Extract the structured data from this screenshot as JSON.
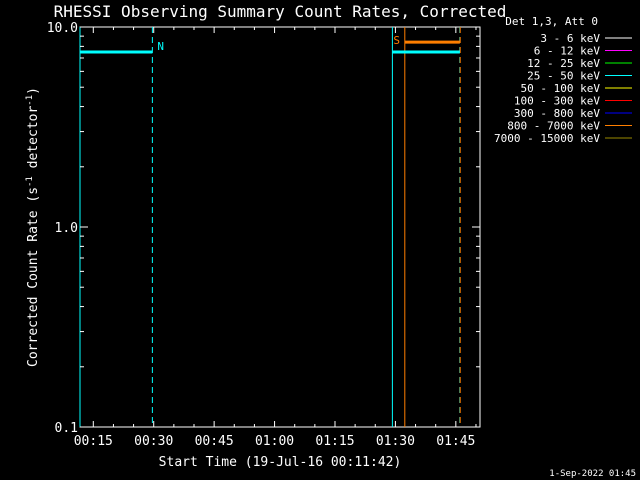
{
  "chart_data": {
    "type": "line",
    "title": "RHESSI Observing Summary Count Rates, Corrected",
    "xlabel": "Start Time (19-Jul-16 00:11:42)",
    "ylabel_main": "Corrected Count Rate (s",
    "ylabel_sup1": "-1",
    "ylabel_mid": " detector",
    "ylabel_sup2": "-1",
    "ylabel_end": ")",
    "yscale": "log",
    "ylim": [
      0.1,
      10.0
    ],
    "xlim": [
      "00:11:42",
      "01:51:00"
    ],
    "x_ticks": [
      "00:15",
      "00:30",
      "00:45",
      "01:00",
      "01:15",
      "01:30",
      "01:45"
    ],
    "y_ticks": [
      "0.1",
      "1.0",
      "10.0"
    ],
    "legend_header": "Det 1,3, Att 0",
    "legend_position": "right",
    "legend": [
      {
        "label": "3 - 6 keV",
        "color": "#ffffff"
      },
      {
        "label": "6 - 12 keV",
        "color": "#ff00ff"
      },
      {
        "label": "12 - 25 keV",
        "color": "#00ff00"
      },
      {
        "label": "25 - 50 keV",
        "color": "#00ffff"
      },
      {
        "label": "50 - 100 keV",
        "color": "#ffff00"
      },
      {
        "label": "100 - 300 keV",
        "color": "#ff0000"
      },
      {
        "label": "300 - 800 keV",
        "color": "#0000ff"
      },
      {
        "label": "800 - 7000 keV",
        "color": "#ff7f00"
      },
      {
        "label": "7000 - 15000 keV",
        "color": "#9a8a00"
      }
    ],
    "series": [
      {
        "name": "25 - 50 keV",
        "color": "#00ffff",
        "segments": [
          {
            "x": [
              "00:11:42",
              "00:29:40"
            ],
            "y": 7.5
          },
          {
            "x": [
              "01:29:15",
              "01:46:00"
            ],
            "y": 7.5
          }
        ]
      },
      {
        "name": "800 - 7000 keV",
        "color": "#ff7f00",
        "segments": [
          {
            "x": [
              "01:32:20",
              "01:46:00"
            ],
            "y": 8.4
          }
        ]
      }
    ],
    "vertical_lines": [
      {
        "x": "00:11:42",
        "color": "#00ffff",
        "style": "solid"
      },
      {
        "x": "00:29:40",
        "color": "#00ffff",
        "style": "dashed"
      },
      {
        "x": "01:29:15",
        "color": "#00ffff",
        "style": "solid"
      },
      {
        "x": "01:46:00",
        "color": "#00ffff",
        "style": "dashed"
      },
      {
        "x": "01:32:20",
        "color": "#ff7f00",
        "style": "solid"
      },
      {
        "x": "01:46:05",
        "color": "#ff7f00",
        "style": "dashed"
      }
    ],
    "annotations": [
      {
        "text": "N",
        "x": "00:29:40",
        "color": "#00ffff"
      },
      {
        "text": "S",
        "x": "01:29:15",
        "color": "#ff7f00"
      }
    ]
  },
  "footer": {
    "timestamp": "1-Sep-2022 01:45"
  }
}
